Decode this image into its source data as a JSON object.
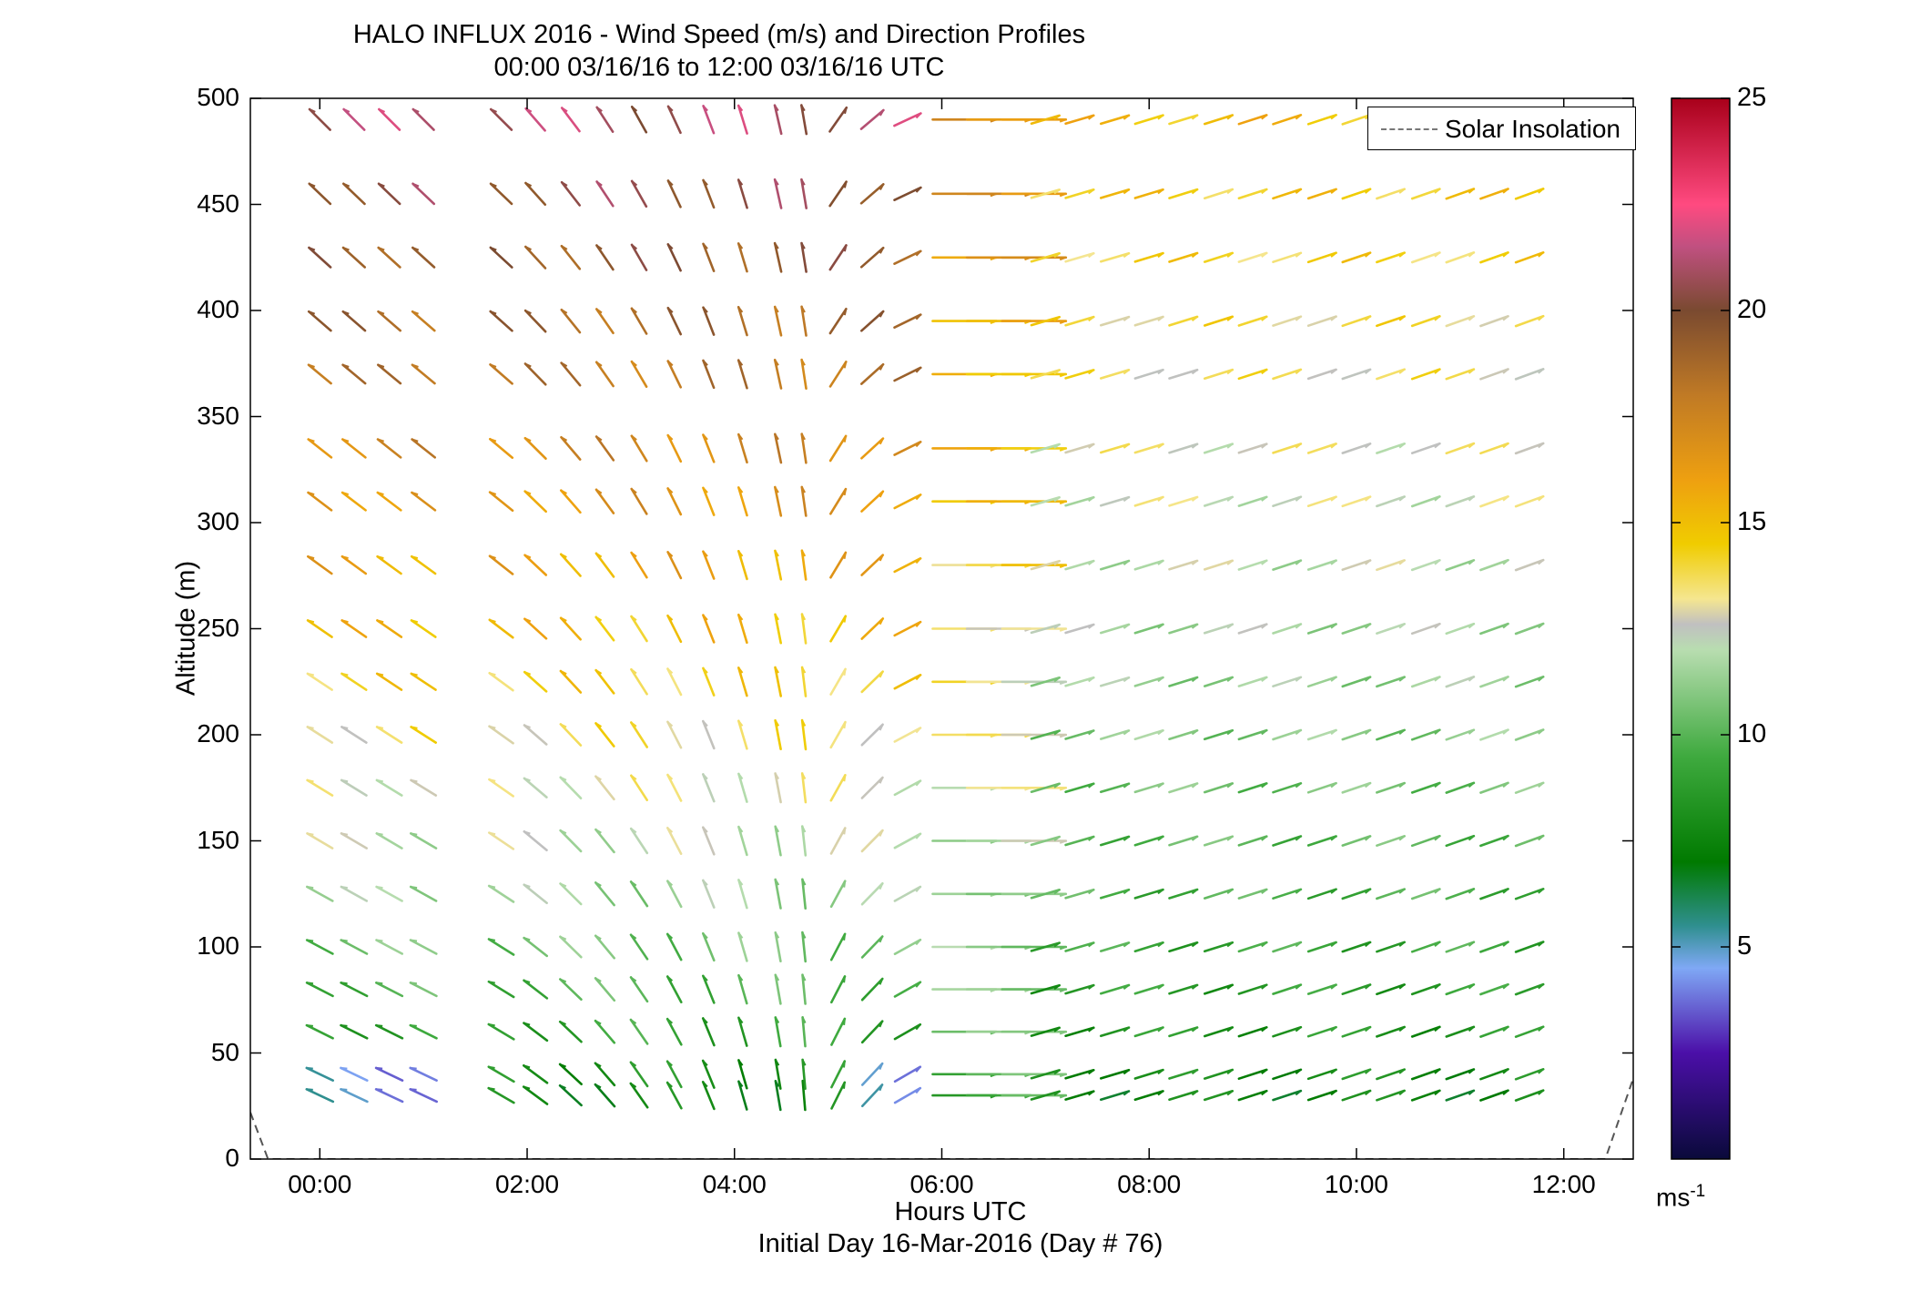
{
  "chart_data": {
    "type": "wind-barb-profile",
    "title": "HALO INFLUX 2016 - Wind Speed (m/s) and Direction Profiles",
    "subtitle": "00:00 03/16/16 to 12:00 03/16/16  UTC",
    "xlabel": "Hours UTC",
    "xlabel2": "Initial Day 16-Mar-2016 (Day # 76)",
    "ylabel": "Altitude (m)",
    "xlim": [
      -0.67,
      12.67
    ],
    "ylim": [
      0,
      500
    ],
    "x_ticks": [
      0,
      2,
      4,
      6,
      8,
      10,
      12
    ],
    "x_tick_labels": [
      "00:00",
      "02:00",
      "04:00",
      "06:00",
      "08:00",
      "10:00",
      "12:00"
    ],
    "y_ticks": [
      0,
      50,
      100,
      150,
      200,
      250,
      300,
      350,
      400,
      450,
      500
    ],
    "y_tick_labels": [
      "0",
      "50",
      "100",
      "150",
      "200",
      "250",
      "300",
      "350",
      "400",
      "450",
      "500"
    ],
    "colorbar": {
      "range": [
        0,
        25
      ],
      "ticks": [
        5,
        10,
        15,
        20,
        25
      ],
      "tick_labels": [
        "5",
        "10",
        "15",
        "20",
        "25"
      ],
      "unit_base": "ms",
      "unit_exp": "-1",
      "stops": [
        {
          "v": 0,
          "c": "#0a0a3a"
        },
        {
          "v": 2.5,
          "c": "#4b0fa8"
        },
        {
          "v": 4.5,
          "c": "#7fa8f5"
        },
        {
          "v": 5.5,
          "c": "#2f8f8f"
        },
        {
          "v": 7,
          "c": "#007a00"
        },
        {
          "v": 9.5,
          "c": "#3faa3f"
        },
        {
          "v": 12,
          "c": "#b8ddb0"
        },
        {
          "v": 12.6,
          "c": "#c0c0c0"
        },
        {
          "v": 13.2,
          "c": "#f5e690"
        },
        {
          "v": 14.5,
          "c": "#f0cc00"
        },
        {
          "v": 16,
          "c": "#eea010"
        },
        {
          "v": 18,
          "c": "#c07a25"
        },
        {
          "v": 20,
          "c": "#7a4a30"
        },
        {
          "v": 21.5,
          "c": "#c05080"
        },
        {
          "v": 22.5,
          "c": "#ff4a80"
        },
        {
          "v": 25,
          "c": "#a8001a"
        }
      ]
    },
    "legend": {
      "entries": [
        "Solar Insolation"
      ],
      "placement": "top-right"
    },
    "solar_insolation": [
      {
        "x": -0.67,
        "y": 22
      },
      {
        "x": -0.5,
        "y": 0
      },
      {
        "x": 12.4,
        "y": 0
      },
      {
        "x": 12.67,
        "y": 38
      }
    ],
    "altitudes": [
      30,
      40,
      60,
      80,
      100,
      125,
      150,
      175,
      200,
      225,
      250,
      280,
      310,
      335,
      370,
      395,
      425,
      455,
      490
    ],
    "times": [
      0.0,
      0.33,
      0.67,
      1.0,
      1.75,
      2.08,
      2.42,
      2.75,
      3.08,
      3.42,
      3.75,
      4.08,
      4.42,
      4.67,
      5.0,
      5.33,
      5.67,
      6.0,
      6.33,
      6.67,
      7.0,
      7.33,
      7.67,
      8.0,
      8.33,
      8.67,
      9.0,
      9.33,
      9.67,
      10.0,
      10.33,
      10.67,
      11.0,
      11.33,
      11.67
    ],
    "wind_model": {
      "segments": [
        {
          "t0": 0.0,
          "t1": 1.0,
          "dir_low": 295,
          "dir_high": 315
        },
        {
          "t0": 1.75,
          "t1": 4.67,
          "dir_low_start": 300,
          "dir_low_end": 355,
          "dir_high_start": 315,
          "dir_high_end": 350
        },
        {
          "t0": 4.67,
          "t1": 5.67,
          "dir_low_start": 10,
          "dir_low_end": 60,
          "dir_high_start": 20,
          "dir_high_end": 65
        },
        {
          "t0": 5.67,
          "t1": 11.67,
          "dir_start": 75,
          "dir_end": 70
        }
      ],
      "speed_near_surface": 7.5,
      "speed_aloft_early": 21,
      "speed_aloft_late": 15
    }
  }
}
